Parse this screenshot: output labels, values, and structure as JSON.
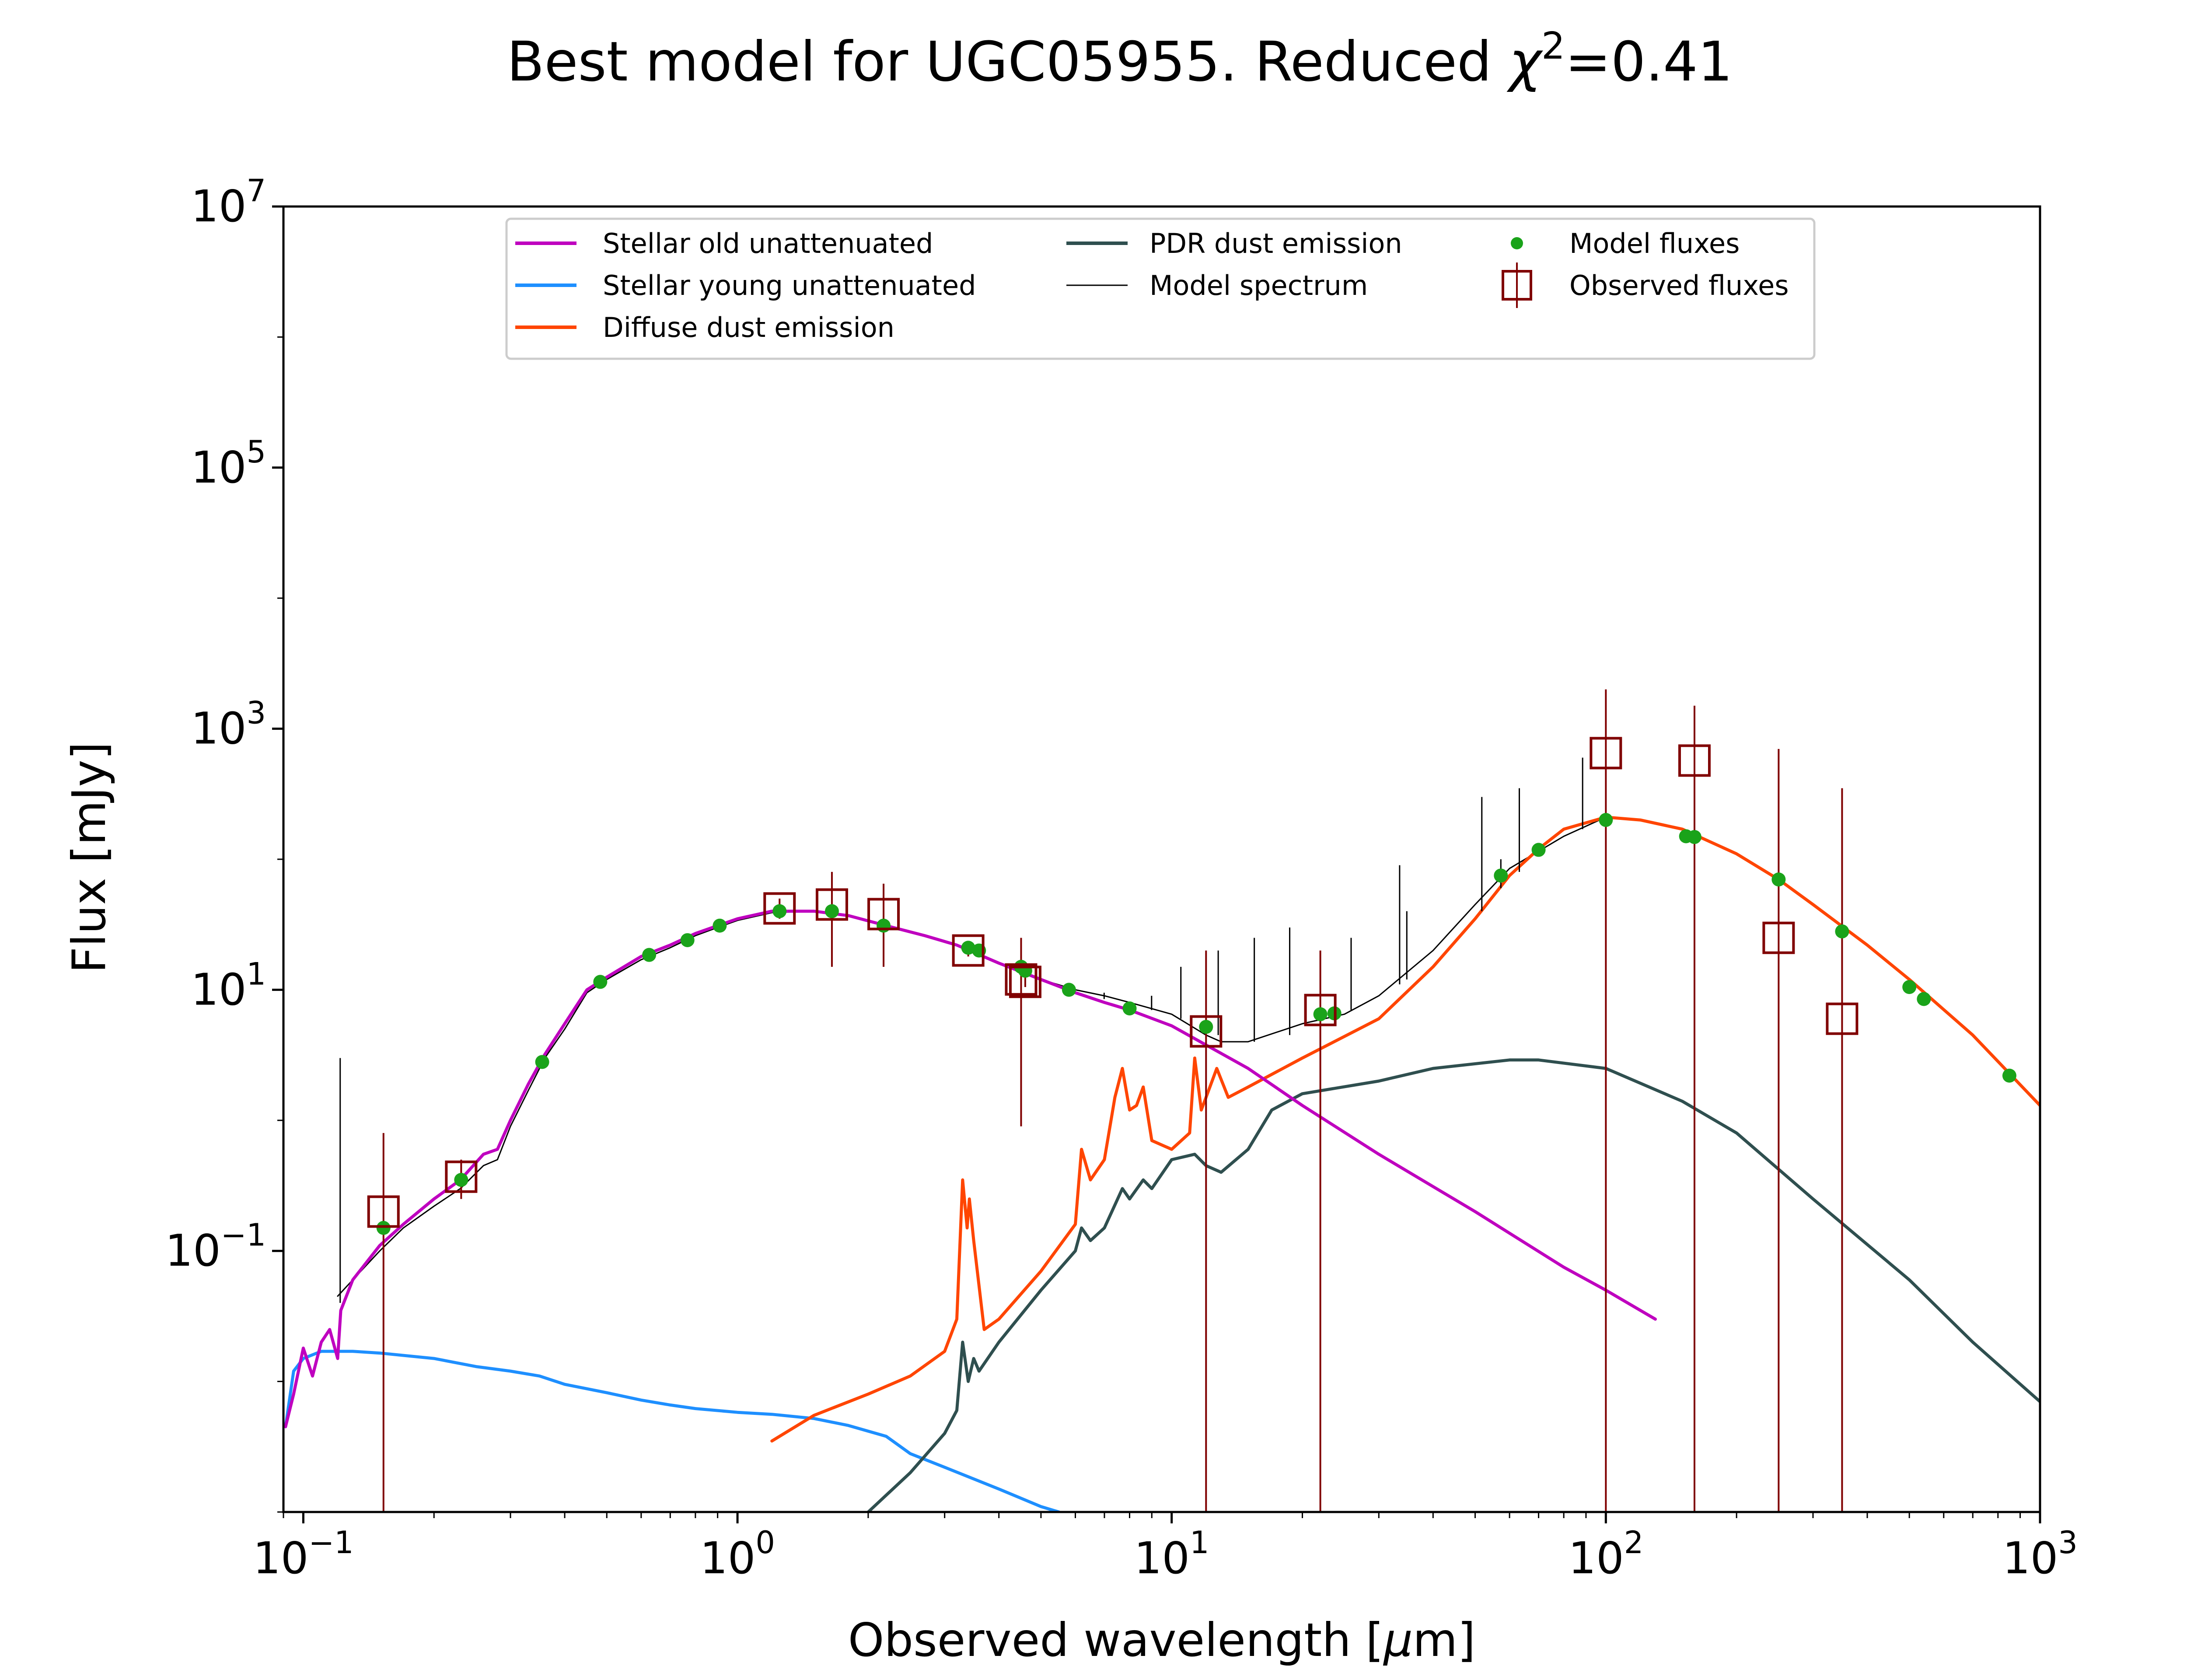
{
  "chart_data": {
    "type": "line",
    "title_main": "Best model for UGC05955. Reduced ",
    "title_chi": "χ",
    "title_sup": "2",
    "title_val": "=0.41",
    "xlabel_main": "Observed wavelength [",
    "xlabel_mu": "μ",
    "xlabel_unit": "m]",
    "ylabel": "Flux [mJy]",
    "xscale": "log",
    "yscale": "log",
    "xlim": [
      0.09,
      1000
    ],
    "ylim": [
      0.001,
      10000000
    ],
    "x_ticks": [
      {
        "value": 0.1,
        "base": "10",
        "exp": "−1"
      },
      {
        "value": 1,
        "base": "10",
        "exp": "0"
      },
      {
        "value": 10,
        "base": "10",
        "exp": "1"
      },
      {
        "value": 100,
        "base": "10",
        "exp": "2"
      },
      {
        "value": 1000,
        "base": "10",
        "exp": "3"
      }
    ],
    "y_ticks": [
      {
        "value": 0.1,
        "base": "10",
        "exp": "−1"
      },
      {
        "value": 10,
        "base": "10",
        "exp": "1"
      },
      {
        "value": 1000,
        "base": "10",
        "exp": "3"
      },
      {
        "value": 100000,
        "base": "10",
        "exp": "5"
      },
      {
        "value": 10000000,
        "base": "10",
        "exp": "7"
      }
    ],
    "legend_position": "top-center",
    "legend": {
      "stellar_old": "Stellar old unattenuated",
      "stellar_young": "Stellar young unattenuated",
      "diffuse_dust": "Diffuse dust emission",
      "pdr_dust": "PDR dust emission",
      "model_spectrum": "Model spectrum",
      "model_fluxes": "Model fluxes",
      "observed_fluxes": "Observed fluxes"
    },
    "colors": {
      "stellar_old": "#bf00bf",
      "stellar_young": "#1e8fff",
      "diffuse_dust": "#ff4500",
      "pdr_dust": "#2f4f4f",
      "model_spectrum": "#000000",
      "model_fluxes": "#1aa31a",
      "observed_fluxes": "#800000"
    },
    "series": [
      {
        "key": "stellar_old",
        "points": [
          [
            0.091,
            0.0045
          ],
          [
            0.095,
            0.008
          ],
          [
            0.1,
            0.018
          ],
          [
            0.105,
            0.011
          ],
          [
            0.11,
            0.02
          ],
          [
            0.115,
            0.025
          ],
          [
            0.12,
            0.015
          ],
          [
            0.122,
            0.035
          ],
          [
            0.13,
            0.06
          ],
          [
            0.15,
            0.11
          ],
          [
            0.17,
            0.16
          ],
          [
            0.2,
            0.25
          ],
          [
            0.23,
            0.35
          ],
          [
            0.26,
            0.55
          ],
          [
            0.28,
            0.6
          ],
          [
            0.3,
            1.0
          ],
          [
            0.33,
            1.9
          ],
          [
            0.36,
            3.2
          ],
          [
            0.4,
            5.5
          ],
          [
            0.45,
            10
          ],
          [
            0.5,
            12.5
          ],
          [
            0.6,
            18
          ],
          [
            0.7,
            22
          ],
          [
            0.8,
            27
          ],
          [
            0.9,
            31
          ],
          [
            1.0,
            35
          ],
          [
            1.2,
            40
          ],
          [
            1.5,
            40
          ],
          [
            1.8,
            37
          ],
          [
            2.2,
            31
          ],
          [
            2.7,
            26
          ],
          [
            3.2,
            22
          ],
          [
            4.0,
            16
          ],
          [
            5.0,
            12
          ],
          [
            6.0,
            9.5
          ],
          [
            7.0,
            8.0
          ],
          [
            8.0,
            7.0
          ],
          [
            10,
            5.3
          ],
          [
            15,
            2.5
          ],
          [
            20,
            1.3
          ],
          [
            30,
            0.55
          ],
          [
            50,
            0.2
          ],
          [
            80,
            0.075
          ],
          [
            100,
            0.05
          ],
          [
            130,
            0.03
          ]
        ]
      },
      {
        "key": "stellar_young",
        "points": [
          [
            0.091,
            0.0045
          ],
          [
            0.095,
            0.012
          ],
          [
            0.1,
            0.015
          ],
          [
            0.11,
            0.017
          ],
          [
            0.12,
            0.017
          ],
          [
            0.13,
            0.017
          ],
          [
            0.15,
            0.0165
          ],
          [
            0.2,
            0.015
          ],
          [
            0.25,
            0.013
          ],
          [
            0.3,
            0.012
          ],
          [
            0.35,
            0.011
          ],
          [
            0.4,
            0.0095
          ],
          [
            0.5,
            0.0082
          ],
          [
            0.6,
            0.0072
          ],
          [
            0.7,
            0.0066
          ],
          [
            0.8,
            0.0062
          ],
          [
            1.0,
            0.0058
          ],
          [
            1.2,
            0.0056
          ],
          [
            1.5,
            0.0052
          ],
          [
            1.8,
            0.0046
          ],
          [
            2.2,
            0.0038
          ],
          [
            2.5,
            0.0028
          ],
          [
            3.0,
            0.0022
          ],
          [
            4.0,
            0.0015
          ],
          [
            5.0,
            0.0011
          ],
          [
            5.5,
            0.001
          ]
        ]
      },
      {
        "key": "diffuse_dust",
        "points": [
          [
            1.2,
            0.0035
          ],
          [
            1.5,
            0.0055
          ],
          [
            2.0,
            0.008
          ],
          [
            2.5,
            0.011
          ],
          [
            3.0,
            0.017
          ],
          [
            3.2,
            0.03
          ],
          [
            3.3,
            0.35
          ],
          [
            3.38,
            0.15
          ],
          [
            3.42,
            0.25
          ],
          [
            3.5,
            0.12
          ],
          [
            3.7,
            0.025
          ],
          [
            4.0,
            0.03
          ],
          [
            5.0,
            0.07
          ],
          [
            6.0,
            0.16
          ],
          [
            6.2,
            0.6
          ],
          [
            6.5,
            0.35
          ],
          [
            7.0,
            0.5
          ],
          [
            7.4,
            1.5
          ],
          [
            7.7,
            2.5
          ],
          [
            8.0,
            1.2
          ],
          [
            8.3,
            1.3
          ],
          [
            8.6,
            1.8
          ],
          [
            9.0,
            0.7
          ],
          [
            10,
            0.6
          ],
          [
            11.0,
            0.8
          ],
          [
            11.3,
            3.0
          ],
          [
            11.7,
            1.2
          ],
          [
            12.0,
            1.5
          ],
          [
            12.7,
            2.5
          ],
          [
            13.5,
            1.5
          ],
          [
            15,
            1.8
          ],
          [
            20,
            3.0
          ],
          [
            30,
            6.0
          ],
          [
            40,
            15
          ],
          [
            50,
            35
          ],
          [
            60,
            75
          ],
          [
            70,
            120
          ],
          [
            80,
            170
          ],
          [
            100,
            210
          ],
          [
            120,
            200
          ],
          [
            150,
            170
          ],
          [
            200,
            110
          ],
          [
            250,
            70
          ],
          [
            300,
            45
          ],
          [
            400,
            22
          ],
          [
            500,
            12
          ],
          [
            700,
            4.5
          ],
          [
            1000,
            1.3
          ]
        ]
      },
      {
        "key": "pdr_dust",
        "points": [
          [
            2.0,
            0.001
          ],
          [
            2.5,
            0.002
          ],
          [
            3.0,
            0.004
          ],
          [
            3.2,
            0.006
          ],
          [
            3.3,
            0.02
          ],
          [
            3.4,
            0.01
          ],
          [
            3.5,
            0.015
          ],
          [
            3.6,
            0.012
          ],
          [
            4.0,
            0.02
          ],
          [
            5.0,
            0.05
          ],
          [
            6.0,
            0.1
          ],
          [
            6.2,
            0.15
          ],
          [
            6.5,
            0.12
          ],
          [
            7.0,
            0.15
          ],
          [
            7.7,
            0.3
          ],
          [
            8.0,
            0.25
          ],
          [
            8.6,
            0.35
          ],
          [
            9.0,
            0.3
          ],
          [
            10,
            0.5
          ],
          [
            11.3,
            0.55
          ],
          [
            12,
            0.45
          ],
          [
            13,
            0.4
          ],
          [
            15,
            0.6
          ],
          [
            17,
            1.2
          ],
          [
            20,
            1.6
          ],
          [
            30,
            2.0
          ],
          [
            40,
            2.5
          ],
          [
            60,
            2.9
          ],
          [
            70,
            2.9
          ],
          [
            100,
            2.5
          ],
          [
            150,
            1.4
          ],
          [
            200,
            0.8
          ],
          [
            300,
            0.25
          ],
          [
            500,
            0.06
          ],
          [
            700,
            0.02
          ],
          [
            1000,
            0.007
          ]
        ]
      },
      {
        "key": "model_spectrum",
        "points": [
          [
            0.12,
            0.045
          ],
          [
            0.13,
            0.06
          ],
          [
            0.15,
            0.1
          ],
          [
            0.17,
            0.15
          ],
          [
            0.2,
            0.22
          ],
          [
            0.23,
            0.3
          ],
          [
            0.26,
            0.45
          ],
          [
            0.28,
            0.5
          ],
          [
            0.3,
            0.9
          ],
          [
            0.33,
            1.7
          ],
          [
            0.36,
            3.0
          ],
          [
            0.4,
            5.0
          ],
          [
            0.45,
            9.5
          ],
          [
            0.5,
            12
          ],
          [
            0.6,
            17
          ],
          [
            0.7,
            21
          ],
          [
            0.8,
            26
          ],
          [
            0.9,
            30
          ],
          [
            1.0,
            34
          ],
          [
            1.2,
            39
          ],
          [
            1.5,
            40
          ],
          [
            1.8,
            37
          ],
          [
            2.2,
            31
          ],
          [
            2.7,
            26
          ],
          [
            3.2,
            22
          ],
          [
            4.0,
            16
          ],
          [
            5.0,
            12
          ],
          [
            6.0,
            10
          ],
          [
            7.0,
            9
          ],
          [
            8.0,
            8
          ],
          [
            10,
            6.5
          ],
          [
            12,
            4.5
          ],
          [
            13,
            4.0
          ],
          [
            15,
            4.0
          ],
          [
            20,
            5.5
          ],
          [
            25,
            6.5
          ],
          [
            30,
            9
          ],
          [
            40,
            20
          ],
          [
            50,
            45
          ],
          [
            60,
            85
          ],
          [
            80,
            150
          ],
          [
            100,
            210
          ],
          [
            120,
            200
          ],
          [
            150,
            170
          ],
          [
            200,
            110
          ],
          [
            250,
            70
          ],
          [
            300,
            45
          ],
          [
            400,
            22
          ],
          [
            500,
            12
          ],
          [
            700,
            4.5
          ],
          [
            1000,
            1.3
          ]
        ]
      }
    ],
    "spectral_lines": [
      {
        "x": 0.1216,
        "y": [
          0.04,
          3.0
        ]
      },
      {
        "x": 6.99,
        "y": [
          8.5,
          9.5
        ]
      },
      {
        "x": 8.99,
        "y": [
          7.0,
          9.0
        ]
      },
      {
        "x": 10.5,
        "y": [
          6.0,
          15.0
        ]
      },
      {
        "x": 12.8,
        "y": [
          4.5,
          20.0
        ]
      },
      {
        "x": 15.5,
        "y": [
          4.0,
          25.0
        ]
      },
      {
        "x": 18.7,
        "y": [
          4.5,
          30.0
        ]
      },
      {
        "x": 25.9,
        "y": [
          7.0,
          25.0
        ]
      },
      {
        "x": 33.5,
        "y": [
          11.0,
          90.0
        ]
      },
      {
        "x": 34.8,
        "y": [
          12.0,
          40.0
        ]
      },
      {
        "x": 51.8,
        "y": [
          40.0,
          300.0
        ]
      },
      {
        "x": 57.3,
        "y": [
          60.0,
          100.0
        ]
      },
      {
        "x": 63.2,
        "y": [
          80.0,
          350.0
        ]
      },
      {
        "x": 88.4,
        "y": [
          170.0,
          600.0
        ]
      }
    ],
    "model_fluxes": [
      {
        "x": 0.153,
        "y": 0.15
      },
      {
        "x": 0.231,
        "y": 0.35
      },
      {
        "x": 0.355,
        "y": 2.8
      },
      {
        "x": 0.483,
        "y": 11.5
      },
      {
        "x": 0.626,
        "y": 18.5
      },
      {
        "x": 0.767,
        "y": 24
      },
      {
        "x": 0.91,
        "y": 31
      },
      {
        "x": 1.25,
        "y": 40
      },
      {
        "x": 1.65,
        "y": 40
      },
      {
        "x": 2.17,
        "y": 31
      },
      {
        "x": 3.4,
        "y": 21
      },
      {
        "x": 3.6,
        "y": 20
      },
      {
        "x": 4.5,
        "y": 15
      },
      {
        "x": 4.6,
        "y": 14
      },
      {
        "x": 5.8,
        "y": 10
      },
      {
        "x": 8.0,
        "y": 7.2
      },
      {
        "x": 12,
        "y": 5.2
      },
      {
        "x": 22,
        "y": 6.5
      },
      {
        "x": 23.7,
        "y": 6.6
      },
      {
        "x": 57.3,
        "y": 75
      },
      {
        "x": 70,
        "y": 118
      },
      {
        "x": 100,
        "y": 200
      },
      {
        "x": 153,
        "y": 150
      },
      {
        "x": 160,
        "y": 148
      },
      {
        "x": 250,
        "y": 70
      },
      {
        "x": 350,
        "y": 28
      },
      {
        "x": 500,
        "y": 10.5
      },
      {
        "x": 540,
        "y": 8.5
      },
      {
        "x": 850,
        "y": 2.2
      }
    ],
    "observed_fluxes": [
      {
        "x": 0.153,
        "y": 0.2,
        "err_lo": 0.0,
        "err_hi": 0.8
      },
      {
        "x": 0.231,
        "y": 0.37,
        "err_lo": 0.25,
        "err_hi": 0.5
      },
      {
        "x": 1.25,
        "y": 42,
        "err_lo": 35,
        "err_hi": 50
      },
      {
        "x": 1.65,
        "y": 45,
        "err_lo": 15,
        "err_hi": 80
      },
      {
        "x": 2.17,
        "y": 38,
        "err_lo": 15,
        "err_hi": 65
      },
      {
        "x": 3.4,
        "y": 20,
        "err_lo": 18,
        "err_hi": 22
      },
      {
        "x": 4.5,
        "y": 12,
        "err_lo": 0.9,
        "err_hi": 25
      },
      {
        "x": 4.6,
        "y": 11.5,
        "err_lo": 10.5,
        "err_hi": 12.5
      },
      {
        "x": 12,
        "y": 4.8,
        "err_lo": 0.001,
        "err_hi": 20
      },
      {
        "x": 22,
        "y": 7.0,
        "err_lo": 0.001,
        "err_hi": 20
      },
      {
        "x": 100,
        "y": 650,
        "err_lo": 0.001,
        "err_hi": 2000
      },
      {
        "x": 160,
        "y": 570,
        "err_lo": 0.001,
        "err_hi": 1500
      },
      {
        "x": 250,
        "y": 25,
        "err_lo": 0.001,
        "err_hi": 700
      },
      {
        "x": 350,
        "y": 6,
        "err_lo": 0.001,
        "err_hi": 350
      }
    ]
  }
}
